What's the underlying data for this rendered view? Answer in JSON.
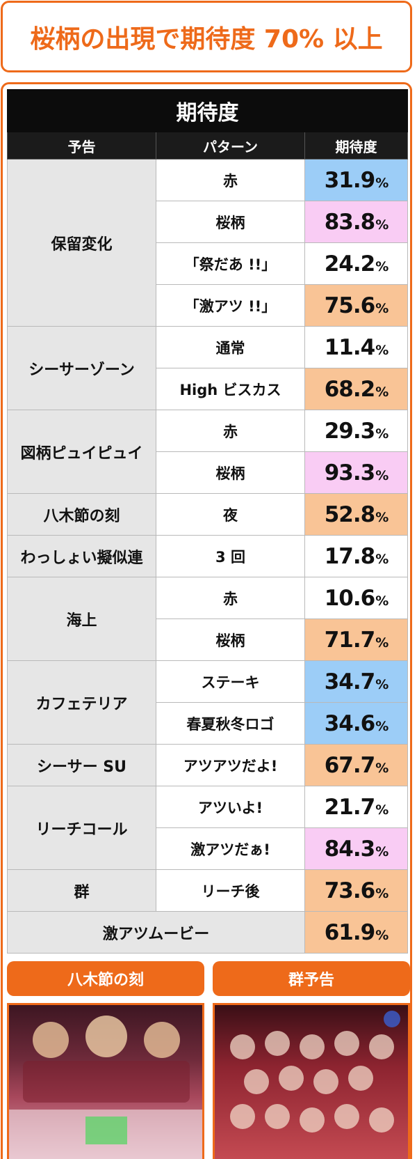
{
  "banner": {
    "text": "桜柄の出現で期待度 70% 以上"
  },
  "table": {
    "title": "期待度",
    "headers": {
      "notice": "予告",
      "pattern": "パターン",
      "rate": "期待度"
    },
    "percent_sign": "%",
    "groups": [
      {
        "notice": "保留変化",
        "rows": [
          {
            "pattern": "赤",
            "value": "31.9",
            "color": "#9ccdf7"
          },
          {
            "pattern": "桜柄",
            "value": "83.8",
            "color": "#f9ccf4"
          },
          {
            "pattern": "「祭だあ !!」",
            "value": "24.2",
            "color": "#ffffff"
          },
          {
            "pattern": "「激アツ !!」",
            "value": "75.6",
            "color": "#f9c496"
          }
        ]
      },
      {
        "notice": "シーサーゾーン",
        "rows": [
          {
            "pattern": "通常",
            "value": "11.4",
            "color": "#ffffff"
          },
          {
            "pattern": "High ビスカス",
            "value": "68.2",
            "color": "#f9c496"
          }
        ]
      },
      {
        "notice": "図柄ピュイピュイ",
        "rows": [
          {
            "pattern": "赤",
            "value": "29.3",
            "color": "#ffffff"
          },
          {
            "pattern": "桜柄",
            "value": "93.3",
            "color": "#f9ccf4"
          }
        ]
      },
      {
        "notice": "八木節の刻",
        "rows": [
          {
            "pattern": "夜",
            "value": "52.8",
            "color": "#f9c496"
          }
        ]
      },
      {
        "notice": "わっしょい擬似連",
        "rows": [
          {
            "pattern": "3 回",
            "value": "17.8",
            "color": "#ffffff"
          }
        ]
      },
      {
        "notice": "海上",
        "rows": [
          {
            "pattern": "赤",
            "value": "10.6",
            "color": "#ffffff"
          },
          {
            "pattern": "桜柄",
            "value": "71.7",
            "color": "#f9c496"
          }
        ]
      },
      {
        "notice": "カフェテリア",
        "rows": [
          {
            "pattern": "ステーキ",
            "value": "34.7",
            "color": "#9ccdf7"
          },
          {
            "pattern": "春夏秋冬ロゴ",
            "value": "34.6",
            "color": "#9ccdf7"
          }
        ]
      },
      {
        "notice": "シーサー SU",
        "rows": [
          {
            "pattern": "アツアツだよ!",
            "value": "67.7",
            "color": "#f9c496"
          }
        ]
      },
      {
        "notice": "リーチコール",
        "rows": [
          {
            "pattern": "アツいよ!",
            "value": "21.7",
            "color": "#ffffff"
          },
          {
            "pattern": "激アツだぁ!",
            "value": "84.3",
            "color": "#f9ccf4"
          }
        ]
      },
      {
        "notice": "群",
        "rows": [
          {
            "pattern": "リーチ後",
            "value": "73.6",
            "color": "#f9c496"
          }
        ]
      },
      {
        "notice": "激アツムービー",
        "merged": true,
        "rows": [
          {
            "pattern": "",
            "value": "61.9",
            "color": "#f9c496"
          }
        ]
      }
    ]
  },
  "tabs": {
    "left": "八木節の刻",
    "right": "群予告"
  }
}
